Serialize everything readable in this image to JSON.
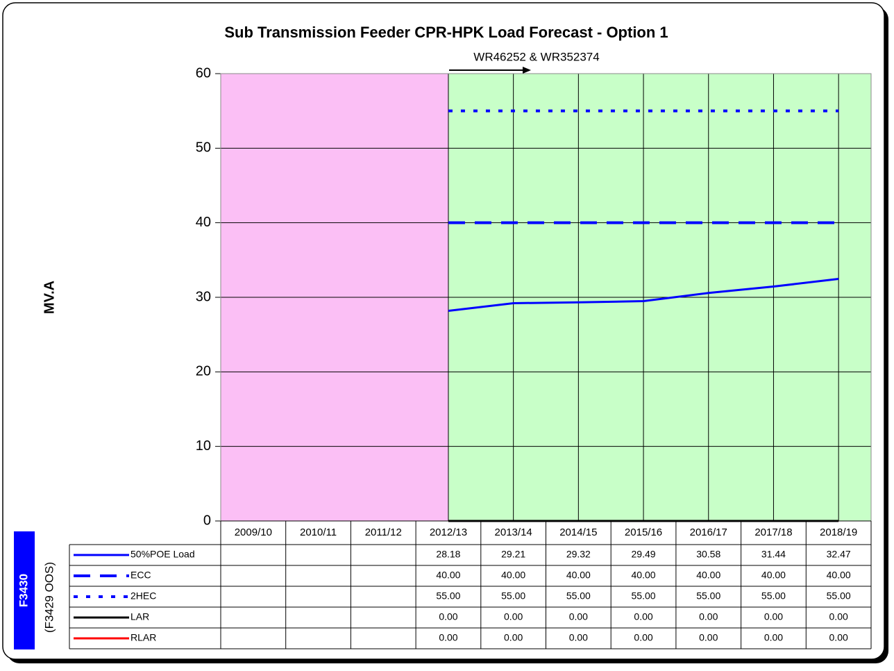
{
  "chart_data": {
    "type": "line",
    "title": "Sub Transmission Feeder CPR-HPK Load Forecast - Option 1",
    "annotation": "WR46252 & WR352374",
    "y_label": "MV.A",
    "side_label": "F3430",
    "side_note": "(F3429 OOS)",
    "categories": [
      "2009/10",
      "2010/11",
      "2011/12",
      "2012/13",
      "2013/14",
      "2014/15",
      "2015/16",
      "2016/17",
      "2017/18",
      "2018/19"
    ],
    "ylim": [
      0,
      60
    ],
    "yticks": [
      0,
      10,
      20,
      30,
      40,
      50,
      60
    ],
    "grid": true,
    "series": [
      {
        "name": "50%POE Load",
        "color": "#0000ff",
        "style": "solid",
        "values": [
          null,
          null,
          null,
          28.18,
          29.21,
          29.32,
          29.49,
          30.58,
          31.44,
          32.47
        ]
      },
      {
        "name": "ECC",
        "color": "#0000ff",
        "style": "dashed",
        "values": [
          null,
          null,
          null,
          40,
          40,
          40,
          40,
          40,
          40,
          40
        ],
        "value_labels": [
          null,
          null,
          null,
          "40.00",
          "40.00",
          "40.00",
          "40.00",
          "40.00",
          "40.00",
          "40.00"
        ]
      },
      {
        "name": "2HEC",
        "color": "#0000ff",
        "style": "dotted",
        "values": [
          null,
          null,
          null,
          55,
          55,
          55,
          55,
          55,
          55,
          55
        ],
        "value_labels": [
          null,
          null,
          null,
          "55.00",
          "55.00",
          "55.00",
          "55.00",
          "55.00",
          "55.00",
          "55.00"
        ]
      },
      {
        "name": "LAR",
        "color": "#000000",
        "style": "solid",
        "values": [
          null,
          null,
          null,
          0,
          0,
          0,
          0,
          0,
          0,
          0
        ],
        "value_labels": [
          null,
          null,
          null,
          "0.00",
          "0.00",
          "0.00",
          "0.00",
          "0.00",
          "0.00",
          "0.00"
        ]
      },
      {
        "name": "RLAR",
        "color": "#ff0000",
        "style": "solid",
        "values": [
          null,
          null,
          null,
          0,
          0,
          0,
          0,
          0,
          0,
          0
        ],
        "value_labels": [
          null,
          null,
          null,
          "0.00",
          "0.00",
          "0.00",
          "0.00",
          "0.00",
          "0.00",
          "0.00"
        ]
      }
    ]
  }
}
